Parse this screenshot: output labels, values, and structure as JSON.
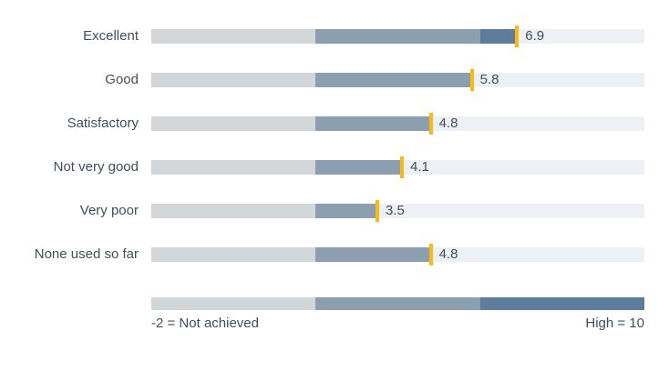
{
  "chart_data": {
    "type": "bar",
    "subtype": "horizontal-bullet-mean",
    "title": "",
    "categories": [
      "Excellent",
      "Good",
      "Satisfactory",
      "Not very good",
      "Very poor",
      "None used so far"
    ],
    "values": [
      6.9,
      5.8,
      4.8,
      4.1,
      3.5,
      4.8
    ],
    "xlim": [
      -2,
      10
    ],
    "grid": false,
    "legend_position": "bottom",
    "zones": [
      {
        "from": -2,
        "to": 2,
        "color": "#D3D6D9"
      },
      {
        "from": 2,
        "to": 6,
        "color": "#8C9FB1"
      },
      {
        "from": 6,
        "to": 10,
        "color": "#5E7D9D"
      }
    ],
    "track_color": "#EDF0F4",
    "marker_color": "#FCB813",
    "text_color": "#3E4F5F",
    "value_decimals": 1,
    "footnote_left": "-2 = Not achieved",
    "footnote_right": "High = 10"
  }
}
